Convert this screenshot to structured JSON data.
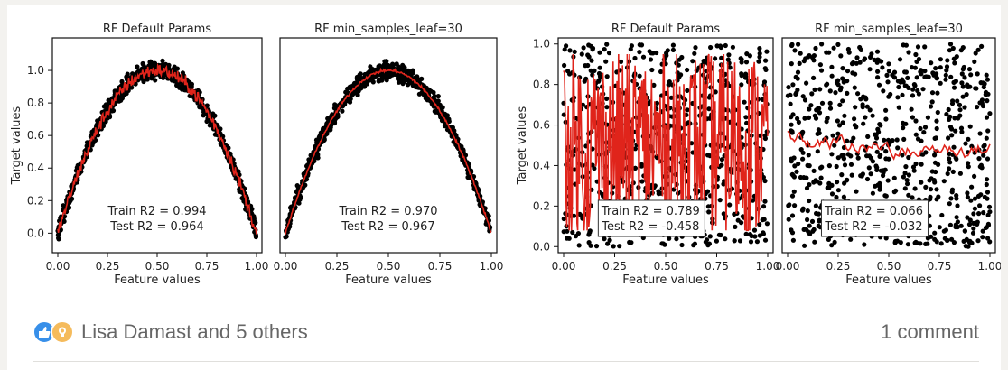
{
  "post": {
    "reactions_text": "Lisa Damast and 5 others",
    "comments_text": "1 comment",
    "reaction_icons": [
      "like-icon",
      "insightful-icon"
    ]
  },
  "chart_data": [
    {
      "type": "scatter",
      "title": "RF Default Params",
      "xlabel": "Feature values",
      "ylabel": "Target values",
      "xlim": [
        0,
        1
      ],
      "ylim": [
        -0.12,
        1.2
      ],
      "xticks": [
        "0.00",
        "0.25",
        "0.50",
        "0.75",
        "1.00"
      ],
      "yticks": [
        "0.0",
        "0.2",
        "0.4",
        "0.6",
        "0.8",
        "1.0"
      ],
      "yticks_values": [
        0,
        0.2,
        0.4,
        0.6,
        0.8,
        1.0
      ],
      "series": [
        {
          "kind": "points",
          "color": "#000000",
          "function": "parabola",
          "noise": 0.05
        },
        {
          "kind": "prediction",
          "color": "#e0241b",
          "function": "parabola",
          "jitter": 0.04
        }
      ],
      "annotation": [
        "Train R2 = 0.994",
        "Test R2 = 0.964"
      ],
      "annotation_box": false
    },
    {
      "type": "scatter",
      "title": "RF min_samples_leaf=30",
      "xlabel": "Feature values",
      "ylabel": "",
      "xlim": [
        0,
        1
      ],
      "ylim": [
        -0.12,
        1.2
      ],
      "xticks": [
        "0.00",
        "0.25",
        "0.50",
        "0.75",
        "1.00"
      ],
      "yticks": [],
      "yticks_values": [],
      "series": [
        {
          "kind": "points",
          "color": "#000000",
          "function": "parabola",
          "noise": 0.05
        },
        {
          "kind": "prediction",
          "color": "#e0241b",
          "function": "parabola",
          "jitter": 0.008
        }
      ],
      "annotation": [
        "Train R2 = 0.970",
        "Test R2 = 0.967"
      ],
      "annotation_box": false
    },
    {
      "type": "scatter",
      "title": "RF Default Params",
      "xlabel": "Feature values",
      "ylabel": "Target values",
      "xlim": [
        0,
        1
      ],
      "ylim": [
        -0.03,
        1.03
      ],
      "xticks": [
        "0.00",
        "0.25",
        "0.50",
        "0.75",
        "1.00"
      ],
      "yticks": [
        "0.0",
        "0.2",
        "0.4",
        "0.6",
        "0.8",
        "1.0"
      ],
      "yticks_values": [
        0,
        0.2,
        0.4,
        0.6,
        0.8,
        1.0
      ],
      "series": [
        {
          "kind": "points",
          "color": "#000000",
          "function": "uniform",
          "noise": 0
        },
        {
          "kind": "prediction",
          "color": "#e0241b",
          "function": "uniform-overfit",
          "jitter": 0
        }
      ],
      "annotation": [
        "Train R2 = 0.789",
        "Test R2 = -0.458"
      ],
      "annotation_box": true
    },
    {
      "type": "scatter",
      "title": "RF min_samples_leaf=30",
      "xlabel": "Feature values",
      "ylabel": "",
      "xlim": [
        0,
        1
      ],
      "ylim": [
        -0.03,
        1.03
      ],
      "xticks": [
        "0.00",
        "0.25",
        "0.50",
        "0.75",
        "1.00"
      ],
      "yticks": [],
      "yticks_values": [],
      "series": [
        {
          "kind": "points",
          "color": "#000000",
          "function": "uniform",
          "noise": 0
        },
        {
          "kind": "prediction",
          "color": "#e0241b",
          "function": "uniform-smooth",
          "jitter": 0
        }
      ],
      "annotation": [
        "Train R2 = 0.066",
        "Test R2 = -0.032"
      ],
      "annotation_box": true
    }
  ]
}
